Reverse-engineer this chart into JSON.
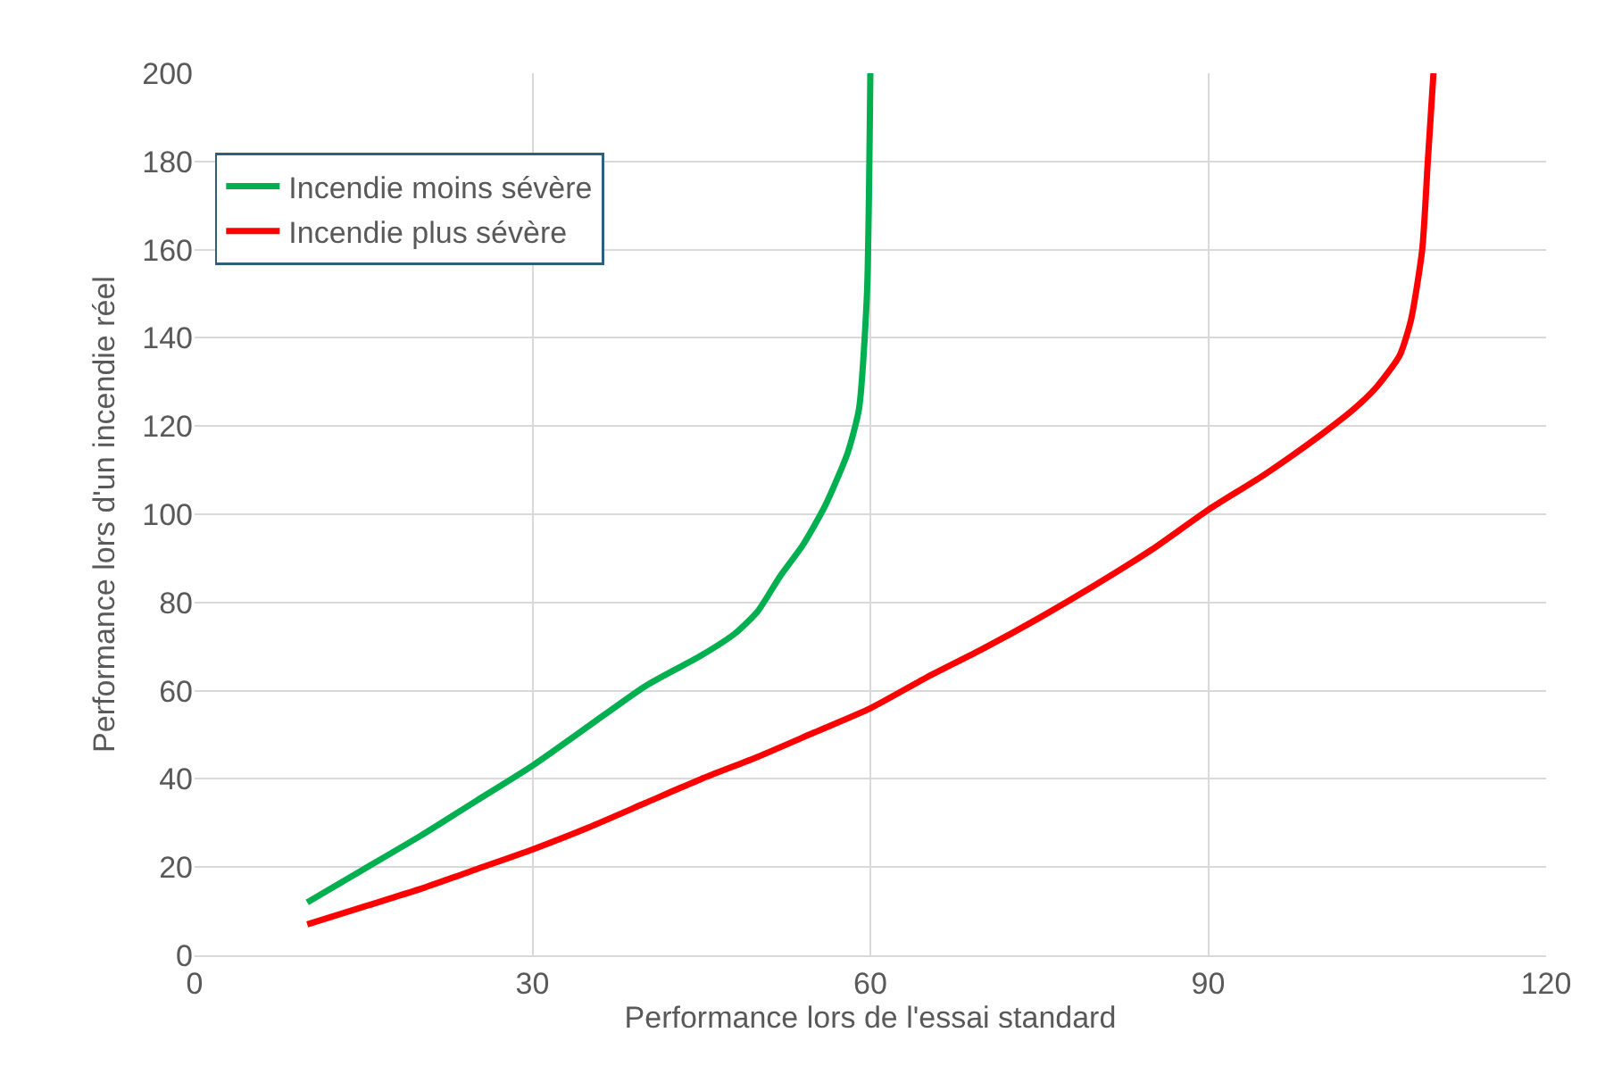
{
  "chart_data": {
    "type": "line",
    "xlabel": "Performance lors de l'essai standard",
    "ylabel": "Performance lors d'un incendie réel",
    "xlim": [
      0,
      120
    ],
    "xticks": [
      0,
      30,
      60,
      90,
      120
    ],
    "ylim": [
      0,
      200
    ],
    "yticks": [
      0,
      20,
      40,
      60,
      80,
      100,
      120,
      140,
      160,
      180,
      200
    ],
    "grid": true,
    "legend": "top left",
    "marker": "none",
    "line_style": "solid",
    "series": [
      {
        "name": "Incendie moins sévère",
        "color": "#00b050",
        "x": [
          10,
          15,
          20,
          25,
          30,
          35,
          40,
          45,
          48,
          50,
          52,
          54,
          56,
          58,
          59,
          59.7,
          60
        ],
        "values": [
          12,
          19.5,
          27,
          35,
          43,
          52,
          61,
          68,
          73,
          78,
          86,
          93,
          102,
          114,
          124,
          150,
          200
        ]
      },
      {
        "name": "Incendie plus sévère",
        "color": "#ff0000",
        "x": [
          10,
          15,
          20,
          25,
          30,
          35,
          40,
          45,
          50,
          55,
          60,
          65,
          70,
          75,
          80,
          85,
          90,
          95,
          100,
          103,
          105,
          107,
          108,
          109,
          109.5,
          110
        ],
        "values": [
          7,
          11,
          15,
          19.5,
          24,
          29,
          34.5,
          40,
          45,
          50.5,
          56,
          63,
          69.5,
          76.5,
          84,
          92,
          101,
          109,
          118,
          124,
          129,
          136,
          144,
          160,
          180,
          200
        ]
      }
    ]
  }
}
